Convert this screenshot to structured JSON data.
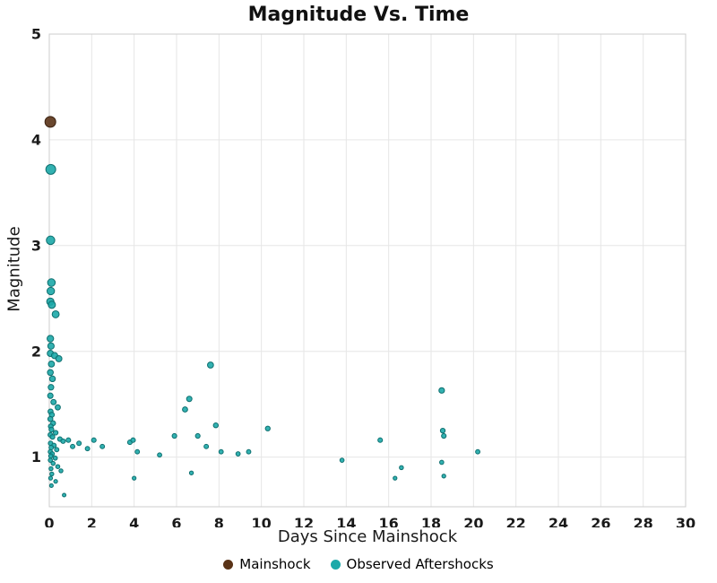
{
  "chart_data": {
    "type": "scatter",
    "title": "Magnitude Vs. Time",
    "xlabel": "Days Since Mainshock",
    "ylabel": "Magnitude",
    "xlim": [
      0,
      30
    ],
    "ylim": [
      0.53,
      5
    ],
    "xticks": [
      0,
      2,
      4,
      6,
      8,
      10,
      12,
      14,
      16,
      18,
      20,
      22,
      24,
      26,
      28,
      30
    ],
    "yticks": [
      1,
      2,
      3,
      4,
      5
    ],
    "grid": true,
    "grid_color": "#e6e6e6",
    "border_color": "#cccccc",
    "legend_position": "bottom",
    "series": [
      {
        "name": "Mainshock",
        "color": "#5A3317",
        "edge": "#3A2110",
        "points": [
          [
            0.05,
            4.17
          ]
        ]
      },
      {
        "name": "Observed Aftershocks",
        "color": "#1CA9A9",
        "edge": "#0E6F6F",
        "points": [
          [
            0.07,
            3.72
          ],
          [
            0.06,
            3.05
          ],
          [
            0.1,
            2.65
          ],
          [
            0.07,
            2.57
          ],
          [
            0.05,
            2.47
          ],
          [
            0.12,
            2.44
          ],
          [
            0.3,
            2.35
          ],
          [
            0.05,
            2.12
          ],
          [
            0.08,
            2.05
          ],
          [
            0.05,
            1.98
          ],
          [
            0.25,
            1.96
          ],
          [
            0.45,
            1.93
          ],
          [
            0.1,
            1.88
          ],
          [
            0.05,
            1.8
          ],
          [
            0.15,
            1.74
          ],
          [
            0.08,
            1.66
          ],
          [
            0.05,
            1.58
          ],
          [
            0.2,
            1.52
          ],
          [
            0.4,
            1.47
          ],
          [
            0.06,
            1.43
          ],
          [
            0.12,
            1.4
          ],
          [
            0.05,
            1.36
          ],
          [
            0.18,
            1.32
          ],
          [
            0.07,
            1.29
          ],
          [
            0.1,
            1.26
          ],
          [
            0.3,
            1.23
          ],
          [
            0.05,
            1.21
          ],
          [
            0.15,
            1.19
          ],
          [
            0.5,
            1.17
          ],
          [
            0.65,
            1.15
          ],
          [
            0.06,
            1.13
          ],
          [
            0.22,
            1.11
          ],
          [
            0.09,
            1.09
          ],
          [
            0.35,
            1.07
          ],
          [
            0.05,
            1.05
          ],
          [
            0.14,
            1.03
          ],
          [
            0.07,
            1.01
          ],
          [
            0.28,
            0.99
          ],
          [
            0.05,
            0.97
          ],
          [
            0.18,
            0.94
          ],
          [
            0.4,
            0.91
          ],
          [
            0.08,
            0.89
          ],
          [
            0.55,
            0.87
          ],
          [
            0.12,
            0.84
          ],
          [
            0.06,
            0.8
          ],
          [
            0.3,
            0.77
          ],
          [
            0.1,
            0.73
          ],
          [
            0.7,
            0.64
          ],
          [
            0.9,
            1.16
          ],
          [
            1.1,
            1.1
          ],
          [
            1.4,
            1.13
          ],
          [
            1.8,
            1.08
          ],
          [
            2.1,
            1.16
          ],
          [
            2.5,
            1.1
          ],
          [
            3.8,
            1.14
          ],
          [
            3.95,
            1.16
          ],
          [
            4.0,
            0.8
          ],
          [
            4.15,
            1.05
          ],
          [
            5.2,
            1.02
          ],
          [
            5.9,
            1.2
          ],
          [
            6.4,
            1.45
          ],
          [
            6.6,
            1.55
          ],
          [
            6.7,
            0.85
          ],
          [
            7.0,
            1.2
          ],
          [
            7.4,
            1.1
          ],
          [
            7.6,
            1.87
          ],
          [
            7.85,
            1.3
          ],
          [
            8.1,
            1.05
          ],
          [
            8.9,
            1.03
          ],
          [
            9.4,
            1.05
          ],
          [
            10.3,
            1.27
          ],
          [
            13.8,
            0.97
          ],
          [
            15.6,
            1.16
          ],
          [
            16.3,
            0.8
          ],
          [
            16.6,
            0.9
          ],
          [
            18.5,
            1.63
          ],
          [
            18.55,
            1.25
          ],
          [
            18.6,
            1.2
          ],
          [
            18.5,
            0.95
          ],
          [
            18.6,
            0.82
          ],
          [
            20.2,
            1.05
          ]
        ]
      }
    ]
  }
}
